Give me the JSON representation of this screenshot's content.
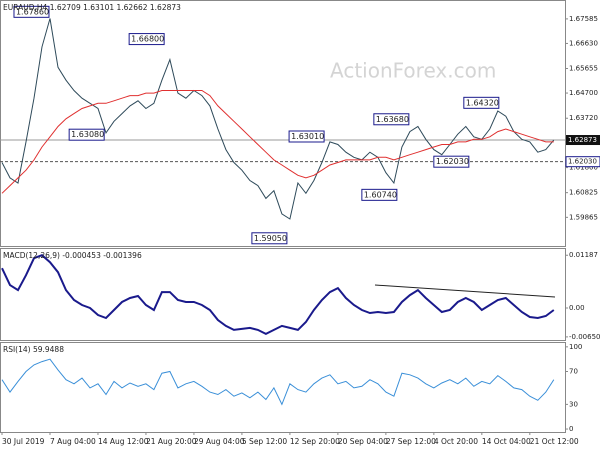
{
  "watermark": "ActionForex.com",
  "chart_data": [
    {
      "type": "line",
      "title": "EURAUD,H4 1.62709 1.63101 1.62662 1.62873",
      "x": [
        -2,
        -1,
        0,
        1,
        2,
        3,
        4,
        5,
        6,
        7,
        8,
        9,
        10,
        11,
        12,
        13,
        14,
        15,
        16,
        17,
        18,
        19,
        20,
        21,
        22,
        23,
        24,
        25,
        26,
        27,
        28,
        29,
        30,
        31,
        32,
        33,
        34,
        35,
        36,
        37,
        38,
        39,
        40,
        41,
        42,
        43,
        44,
        45,
        46,
        47,
        48,
        49,
        50,
        51,
        52,
        53,
        54,
        55,
        56,
        57,
        58,
        59,
        60,
        61,
        62,
        63,
        64,
        65,
        66,
        67
      ],
      "xlim": [
        -2.25,
        68.4
      ],
      "ylim": [
        1.5875,
        1.6832
      ],
      "yticks": [
        1.67585,
        {
          "value": 1.6663,
          "label": "1.66630"
        },
        1.65655,
        {
          "value": 1.647,
          "label": "1.64700"
        },
        {
          "value": 1.6372,
          "label": "1.63720"
        },
        {
          "value": 1.618,
          "label": "1.61800"
        },
        1.60825,
        1.59865
      ],
      "series": [
        {
          "color": "#2e4a5a",
          "values": [
            1.62,
            1.614,
            1.612,
            1.628,
            1.645,
            1.665,
            1.676,
            1.657,
            1.652,
            1.648,
            1.645,
            1.643,
            1.641,
            1.6315,
            1.636,
            1.639,
            1.642,
            1.644,
            1.641,
            1.643,
            1.652,
            1.66,
            1.647,
            1.645,
            1.648,
            1.646,
            1.642,
            1.633,
            1.625,
            1.62,
            1.617,
            1.613,
            1.611,
            1.606,
            1.609,
            1.6,
            1.598,
            1.612,
            1.608,
            1.613,
            1.62,
            1.628,
            1.627,
            1.624,
            1.622,
            1.621,
            1.624,
            1.622,
            1.616,
            1.612,
            1.626,
            1.632,
            1.634,
            1.629,
            1.625,
            1.623,
            1.627,
            1.631,
            1.634,
            1.63,
            1.629,
            1.633,
            1.64,
            1.638,
            1.632,
            1.629,
            1.628,
            1.624,
            1.625,
            1.6287
          ]
        },
        {
          "color": "#e03030",
          "values": [
            1.608,
            1.611,
            1.614,
            1.617,
            1.621,
            1.626,
            1.63,
            1.634,
            1.637,
            1.639,
            1.641,
            1.642,
            1.643,
            1.643,
            1.644,
            1.645,
            1.646,
            1.646,
            1.647,
            1.647,
            1.648,
            1.648,
            1.648,
            1.648,
            1.648,
            1.648,
            1.646,
            1.642,
            1.639,
            1.636,
            1.633,
            1.63,
            1.627,
            1.624,
            1.621,
            1.619,
            1.617,
            1.615,
            1.614,
            1.615,
            1.617,
            1.619,
            1.62,
            1.621,
            1.621,
            1.621,
            1.621,
            1.622,
            1.622,
            1.621,
            1.622,
            1.623,
            1.624,
            1.625,
            1.626,
            1.627,
            1.627,
            1.628,
            1.628,
            1.629,
            1.629,
            1.63,
            1.632,
            1.633,
            1.632,
            1.631,
            1.63,
            1.629,
            1.628,
            1.628
          ]
        }
      ],
      "annotations": [
        {
          "x": 4,
          "value": 1.6786,
          "label": "1.67860"
        },
        {
          "x": 18.4,
          "value": 1.668,
          "label": "1.66800"
        },
        {
          "x": 10.9,
          "value": 1.6308,
          "label": "1.63080"
        },
        {
          "x": 33.75,
          "value": 1.5905,
          "label": "1.59050"
        },
        {
          "x": 38.4,
          "value": 1.6301,
          "label": "1.63010"
        },
        {
          "x": 47.5,
          "value": 1.6074,
          "label": "1.60740"
        },
        {
          "x": 49,
          "value": 1.6368,
          "label": "1.63680"
        },
        {
          "x": 56.5,
          "value": 1.6203,
          "label": "1.62030"
        },
        {
          "x": 60.25,
          "value": 1.6432,
          "label": "1.64320"
        }
      ],
      "current": {
        "value": 1.62873,
        "label": "1.62873"
      },
      "level": {
        "value": 1.6203,
        "label": "1.62030"
      }
    },
    {
      "type": "line",
      "title": "MACD(12,26,9) -0.000453 -0.001396",
      "x": [
        -2,
        -1,
        0,
        1,
        2,
        3,
        4,
        5,
        6,
        7,
        8,
        9,
        10,
        11,
        12,
        13,
        14,
        15,
        16,
        17,
        18,
        19,
        20,
        21,
        22,
        23,
        24,
        25,
        26,
        27,
        28,
        29,
        30,
        31,
        32,
        33,
        34,
        35,
        36,
        37,
        38,
        39,
        40,
        41,
        42,
        43,
        44,
        45,
        46,
        47,
        48,
        49,
        50,
        51,
        52,
        53,
        54,
        55,
        56,
        57,
        58,
        59,
        60,
        61,
        62,
        63,
        64,
        65,
        66,
        67
      ],
      "xlim": [
        -2.25,
        68.4
      ],
      "ylim": [
        -0.0072,
        0.0135
      ],
      "yticks": [
        0.01187,
        {
          "value": 0,
          "label": "0.00"
        },
        -0.006502
      ],
      "series": [
        {
          "color": "#1a1a8c",
          "values": [
            0.00896,
            0.00515,
            0.00403,
            0.00739,
            0.0112,
            0.01187,
            0.0103,
            0.00806,
            0.00403,
            0.00179,
            0.00067,
            0,
            -0.00157,
            -0.00224,
            -0.00045,
            0.00134,
            0.00224,
            0.00269,
            0.00067,
            -0.00045,
            0.00358,
            0.00358,
            0.00179,
            0.00134,
            0.00134,
            0.00067,
            -0.00045,
            -0.00269,
            -0.00403,
            -0.00493,
            -0.0047,
            -0.00448,
            -0.00493,
            -0.00582,
            -0.00493,
            -0.00403,
            -0.00448,
            -0.00493,
            -0.00314,
            -0.00045,
            0.00179,
            0.00358,
            0.00448,
            0.00224,
            0.00067,
            -0.00045,
            -0.00112,
            -0.0009,
            -0.00112,
            -0.0009,
            0.00134,
            0.00291,
            0.00403,
            0.00224,
            0.00067,
            -0.0009,
            -0.00045,
            0.00134,
            0.00224,
            0.00134,
            -0.00045,
            0.00067,
            0.00179,
            0.00224,
            0.00067,
            -0.0009,
            -0.00202,
            -0.00224,
            -0.00179,
            -0.00045
          ]
        }
      ]
    },
    {
      "type": "line",
      "title": "RSI(14) 59.9488",
      "x": [
        -2,
        -1,
        0,
        1,
        2,
        3,
        4,
        5,
        6,
        7,
        8,
        9,
        10,
        11,
        12,
        13,
        14,
        15,
        16,
        17,
        18,
        19,
        20,
        21,
        22,
        23,
        24,
        25,
        26,
        27,
        28,
        29,
        30,
        31,
        32,
        33,
        34,
        35,
        36,
        37,
        38,
        39,
        40,
        41,
        42,
        43,
        44,
        45,
        46,
        47,
        48,
        49,
        50,
        51,
        52,
        53,
        54,
        55,
        56,
        57,
        58,
        59,
        60,
        61,
        62,
        63,
        64,
        65,
        66,
        67
      ],
      "xlim": [
        -2.25,
        68.4
      ],
      "ylim": [
        -3.6,
        105.9
      ],
      "yticks": [
        100,
        70,
        30,
        0
      ],
      "xticks": [
        {
          "value": -2,
          "label": "30 Jul 2019"
        },
        {
          "value": 4,
          "label": "7 Aug 04:00"
        },
        {
          "value": 10,
          "label": "14 Aug 12:00"
        },
        {
          "value": 16,
          "label": "21 Aug 20:00"
        },
        {
          "value": 22,
          "label": "29 Aug 04:00"
        },
        {
          "value": 28,
          "label": "5 Sep 12:00"
        },
        {
          "value": 34,
          "label": "12 Sep 20:00"
        },
        {
          "value": 40,
          "label": "20 Sep 04:00"
        },
        {
          "value": 46,
          "label": "27 Sep 12:00"
        },
        {
          "value": 52,
          "label": "4 Oct 20:00"
        },
        {
          "value": 58,
          "label": "14 Oct 04:00"
        },
        {
          "value": 64,
          "label": "21 Oct 12:00"
        }
      ],
      "series": [
        {
          "color": "#3a8fd8",
          "values": [
            60,
            45,
            58,
            70,
            78,
            82,
            85,
            72,
            60,
            55,
            62,
            50,
            55,
            42,
            58,
            50,
            56,
            52,
            55,
            48,
            68,
            70,
            50,
            55,
            58,
            52,
            45,
            42,
            48,
            40,
            44,
            38,
            45,
            36,
            50,
            30,
            55,
            48,
            45,
            55,
            62,
            66,
            55,
            58,
            50,
            52,
            60,
            55,
            45,
            40,
            68,
            66,
            62,
            55,
            50,
            56,
            60,
            55,
            62,
            52,
            58,
            55,
            65,
            58,
            50,
            48,
            40,
            35,
            45,
            60
          ]
        }
      ]
    }
  ]
}
